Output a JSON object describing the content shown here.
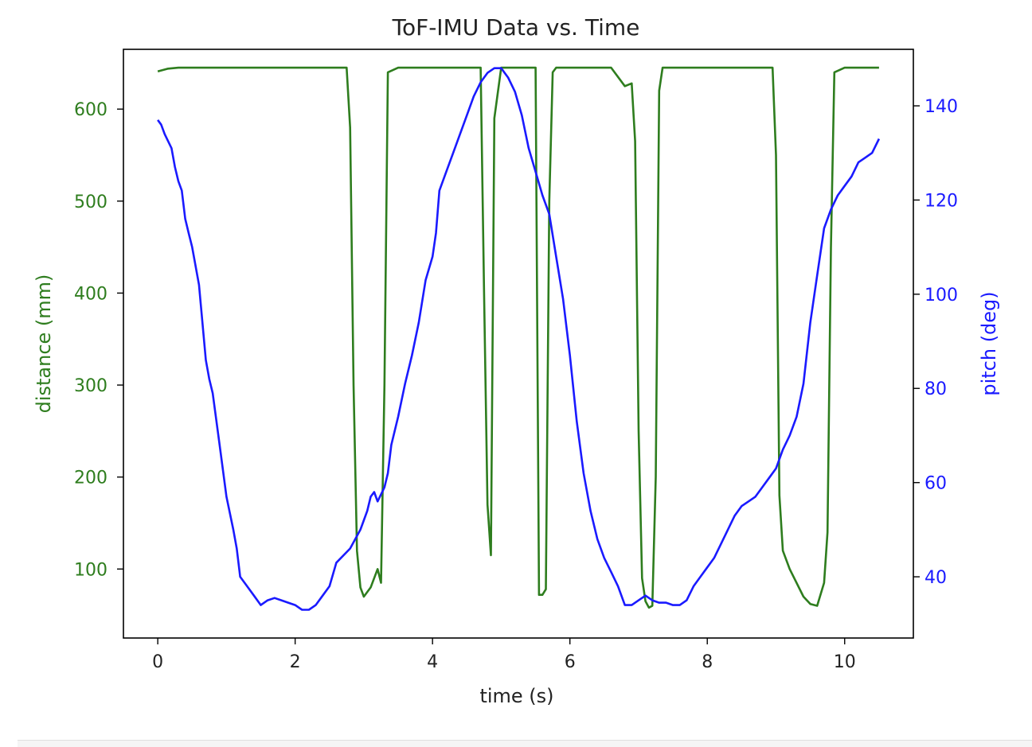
{
  "chart_data": {
    "type": "line",
    "title": "ToF-IMU Data vs. Time",
    "xlabel": "time (s)",
    "ylabel_left": "distance (mm)",
    "ylabel_right": "pitch (deg)",
    "xlim": [
      -0.5,
      11.0
    ],
    "ylim_left": [
      25,
      665
    ],
    "ylim_right": [
      27,
      152
    ],
    "xticks": [
      0,
      2,
      4,
      6,
      8,
      10
    ],
    "yticks_left": [
      100,
      200,
      300,
      400,
      500,
      600
    ],
    "yticks_right": [
      40,
      60,
      80,
      100,
      120,
      140
    ],
    "grid": false,
    "colors": {
      "distance": "#2e7d1e",
      "pitch": "#1a1aff"
    },
    "series": [
      {
        "axis": "left",
        "x": [
          0.0,
          0.15,
          0.3,
          0.5,
          1.0,
          1.5,
          2.0,
          2.5,
          2.75,
          2.8,
          2.85,
          2.9,
          2.95,
          3.0,
          3.1,
          3.2,
          3.25,
          3.3,
          3.35,
          3.5,
          4.0,
          4.5,
          4.7,
          4.75,
          4.8,
          4.85,
          4.9,
          5.0,
          5.3,
          5.5,
          5.55,
          5.6,
          5.65,
          5.7,
          5.75,
          5.8,
          6.0,
          6.4,
          6.6,
          6.8,
          6.9,
          6.95,
          7.0,
          7.05,
          7.1,
          7.15,
          7.2,
          7.25,
          7.3,
          7.35,
          7.4,
          7.5,
          8.0,
          8.5,
          8.95,
          9.0,
          9.05,
          9.1,
          9.2,
          9.4,
          9.5,
          9.6,
          9.7,
          9.75,
          9.8,
          9.85,
          10.0,
          10.5
        ],
        "values": [
          641,
          644,
          645,
          645,
          645,
          645,
          645,
          645,
          645,
          580,
          300,
          120,
          80,
          70,
          80,
          100,
          85,
          300,
          640,
          645,
          645,
          645,
          645,
          400,
          170,
          115,
          590,
          645,
          645,
          645,
          72,
          72,
          78,
          500,
          640,
          645,
          645,
          645,
          645,
          625,
          628,
          565,
          250,
          90,
          65,
          58,
          60,
          200,
          620,
          645,
          645,
          645,
          645,
          645,
          645,
          550,
          180,
          120,
          100,
          70,
          62,
          60,
          85,
          140,
          450,
          640,
          645,
          645
        ]
      },
      {
        "axis": "right",
        "x": [
          0.0,
          0.05,
          0.1,
          0.2,
          0.25,
          0.3,
          0.35,
          0.4,
          0.45,
          0.5,
          0.6,
          0.7,
          0.75,
          0.8,
          0.9,
          1.0,
          1.1,
          1.15,
          1.2,
          1.3,
          1.4,
          1.5,
          1.6,
          1.7,
          1.8,
          1.9,
          2.0,
          2.1,
          2.2,
          2.3,
          2.4,
          2.5,
          2.6,
          2.8,
          2.95,
          3.0,
          3.05,
          3.1,
          3.15,
          3.2,
          3.3,
          3.35,
          3.4,
          3.5,
          3.6,
          3.7,
          3.8,
          3.9,
          4.0,
          4.05,
          4.1,
          4.2,
          4.3,
          4.4,
          4.5,
          4.6,
          4.7,
          4.8,
          4.9,
          5.0,
          5.1,
          5.2,
          5.3,
          5.4,
          5.5,
          5.6,
          5.7,
          5.8,
          5.9,
          6.0,
          6.1,
          6.2,
          6.3,
          6.4,
          6.5,
          6.6,
          6.7,
          6.8,
          6.9,
          7.0,
          7.1,
          7.2,
          7.3,
          7.4,
          7.5,
          7.6,
          7.7,
          7.8,
          7.9,
          8.0,
          8.1,
          8.2,
          8.3,
          8.4,
          8.5,
          8.6,
          8.7,
          8.8,
          8.9,
          9.0,
          9.1,
          9.2,
          9.3,
          9.4,
          9.5,
          9.6,
          9.7,
          9.8,
          9.9,
          10.0,
          10.1,
          10.2,
          10.3,
          10.4,
          10.5
        ],
        "values": [
          137,
          136,
          134,
          131,
          127,
          124,
          122,
          116,
          113,
          110,
          102,
          86,
          82,
          79,
          68,
          57,
          50,
          46,
          40,
          38,
          36,
          34,
          35,
          35.5,
          35,
          34.5,
          34,
          33,
          33,
          34,
          36,
          38,
          43,
          46,
          50,
          52,
          54,
          57,
          58,
          56,
          59,
          62,
          68,
          74,
          81,
          87,
          94,
          103,
          108,
          113,
          122,
          126,
          130,
          134,
          138,
          142,
          145,
          147,
          148,
          148,
          146,
          143,
          138,
          131,
          126,
          121,
          117,
          108,
          99,
          87,
          73,
          62,
          54,
          48,
          44,
          41,
          38,
          34,
          34,
          35,
          36,
          35,
          34.5,
          34.5,
          34,
          34,
          35,
          38,
          40,
          42,
          44,
          47,
          50,
          53,
          55,
          56,
          57,
          59,
          61,
          63,
          67,
          70,
          74,
          81,
          94,
          104,
          114,
          118,
          121,
          123,
          125,
          128,
          129,
          130,
          133
        ]
      }
    ]
  }
}
